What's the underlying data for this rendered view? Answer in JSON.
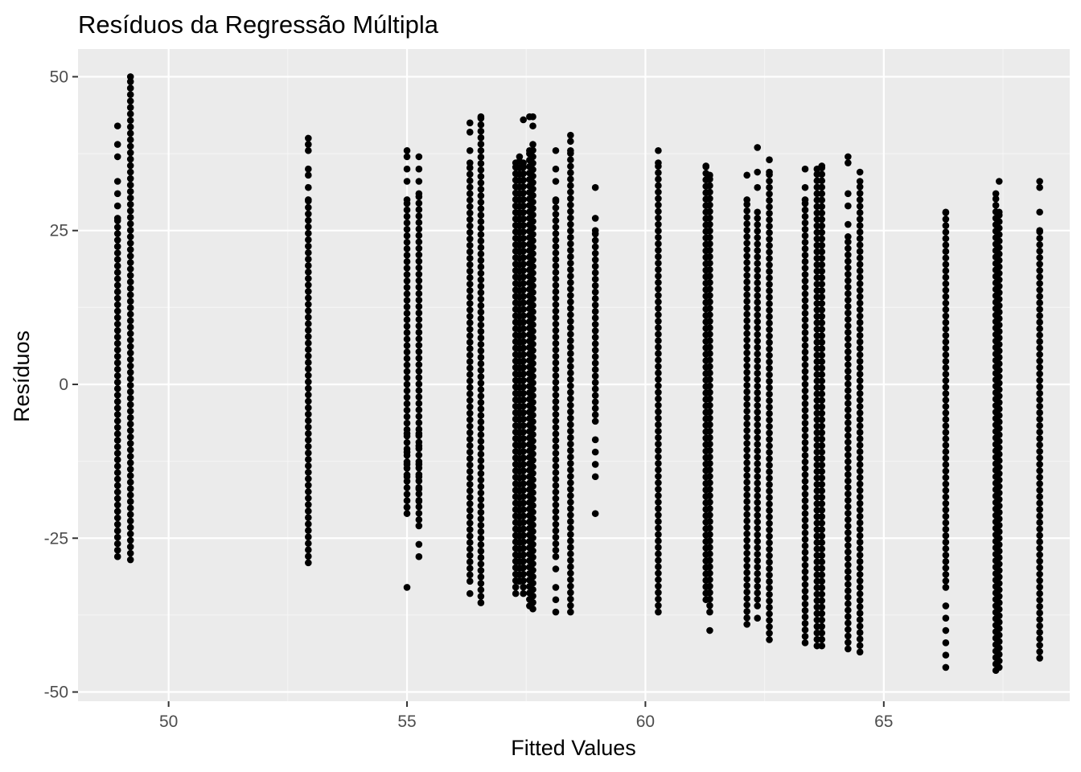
{
  "chart_data": {
    "type": "scatter",
    "title": "Resíduos da Regressão Múltipla",
    "xlabel": "Fitted Values",
    "ylabel": "Resíduos",
    "xlim": [
      48.1,
      68.9
    ],
    "ylim": [
      -51.5,
      54.5
    ],
    "x_ticks": [
      50,
      55,
      60,
      65
    ],
    "y_ticks": [
      -50,
      -25,
      0,
      25,
      50
    ],
    "x_tick_labels": [
      "50",
      "55",
      "60",
      "65"
    ],
    "y_tick_labels": [
      "-50",
      "-25",
      "0",
      "25",
      "50"
    ],
    "grid": true,
    "legend": "none",
    "colors": {
      "panel": "#ebebeb",
      "grid_major": "#ffffff",
      "grid_minor": "#f5f5f5",
      "point": "#000000",
      "tick_label": "#4d4d4d",
      "tick_mark": "#333333"
    },
    "columns": [
      {
        "x": 48.93,
        "min": -28,
        "max": 27,
        "extra": [
          29,
          31,
          33,
          37,
          39,
          42
        ]
      },
      {
        "x": 49.2,
        "min": -28.5,
        "max": 50,
        "extra": []
      },
      {
        "x": 52.93,
        "min": -29,
        "max": 30,
        "extra": [
          32,
          34,
          35,
          38,
          39,
          40
        ]
      },
      {
        "x": 55.0,
        "min": -21,
        "max": 30,
        "extra": [
          -33,
          -20,
          -15,
          -13,
          -11,
          -8,
          33,
          35,
          37,
          38
        ]
      },
      {
        "x": 55.25,
        "min": -22,
        "max": 31,
        "extra": [
          -28,
          -26,
          -23,
          -19,
          -17,
          -15,
          -13,
          -10,
          -8,
          33,
          35,
          37
        ]
      },
      {
        "x": 56.32,
        "min": -32,
        "max": 36,
        "extra": [
          -34,
          38,
          41,
          42.5
        ]
      },
      {
        "x": 56.55,
        "min": -35.5,
        "max": 43.5,
        "extra": []
      },
      {
        "x": 57.28,
        "min": -34,
        "max": 36,
        "extra": []
      },
      {
        "x": 57.36,
        "min": -32,
        "max": 37,
        "extra": []
      },
      {
        "x": 57.44,
        "min": -34,
        "max": 36,
        "extra": [
          43
        ]
      },
      {
        "x": 57.57,
        "min": -36,
        "max": 38,
        "extra": [
          43.5
        ]
      },
      {
        "x": 57.64,
        "min": -36.5,
        "max": 39,
        "extra": [
          42,
          43.5
        ]
      },
      {
        "x": 58.12,
        "min": -28,
        "max": 30,
        "extra": [
          -37,
          -35,
          -33,
          -30,
          33,
          35,
          38
        ]
      },
      {
        "x": 58.43,
        "min": -37,
        "max": 38,
        "extra": [
          39.5,
          40.5
        ]
      },
      {
        "x": 58.95,
        "min": -6,
        "max": 25,
        "extra": [
          -21,
          -15,
          -13,
          -11,
          -9,
          27,
          32
        ]
      },
      {
        "x": 60.27,
        "min": -37,
        "max": 36,
        "extra": [
          38
        ]
      },
      {
        "x": 61.27,
        "min": -35,
        "max": 35.5,
        "extra": []
      },
      {
        "x": 61.35,
        "min": -37,
        "max": 34,
        "extra": [
          -40
        ]
      },
      {
        "x": 62.13,
        "min": -39,
        "max": 30,
        "extra": [
          34
        ]
      },
      {
        "x": 62.35,
        "min": -36,
        "max": 28,
        "extra": [
          -38,
          32,
          34.5,
          38.5
        ]
      },
      {
        "x": 62.6,
        "min": -41.5,
        "max": 34.5,
        "extra": [
          36.5
        ]
      },
      {
        "x": 63.35,
        "min": -42,
        "max": 30,
        "extra": [
          32,
          35
        ]
      },
      {
        "x": 63.6,
        "min": -42.5,
        "max": 35,
        "extra": []
      },
      {
        "x": 63.7,
        "min": -42.5,
        "max": 35.5,
        "extra": []
      },
      {
        "x": 64.25,
        "min": -43,
        "max": 24,
        "extra": [
          26,
          29,
          31,
          36,
          37
        ]
      },
      {
        "x": 64.5,
        "min": -43.5,
        "max": 33,
        "extra": [
          34.5
        ]
      },
      {
        "x": 66.3,
        "min": -33,
        "max": 28,
        "extra": [
          -36,
          -38,
          -40,
          -42,
          -44,
          -46
        ]
      },
      {
        "x": 67.35,
        "min": -46.5,
        "max": 31,
        "extra": []
      },
      {
        "x": 67.42,
        "min": -46,
        "max": 28,
        "extra": [
          33
        ]
      },
      {
        "x": 68.27,
        "min": -44.5,
        "max": 25,
        "extra": [
          28,
          32,
          33
        ]
      }
    ]
  }
}
